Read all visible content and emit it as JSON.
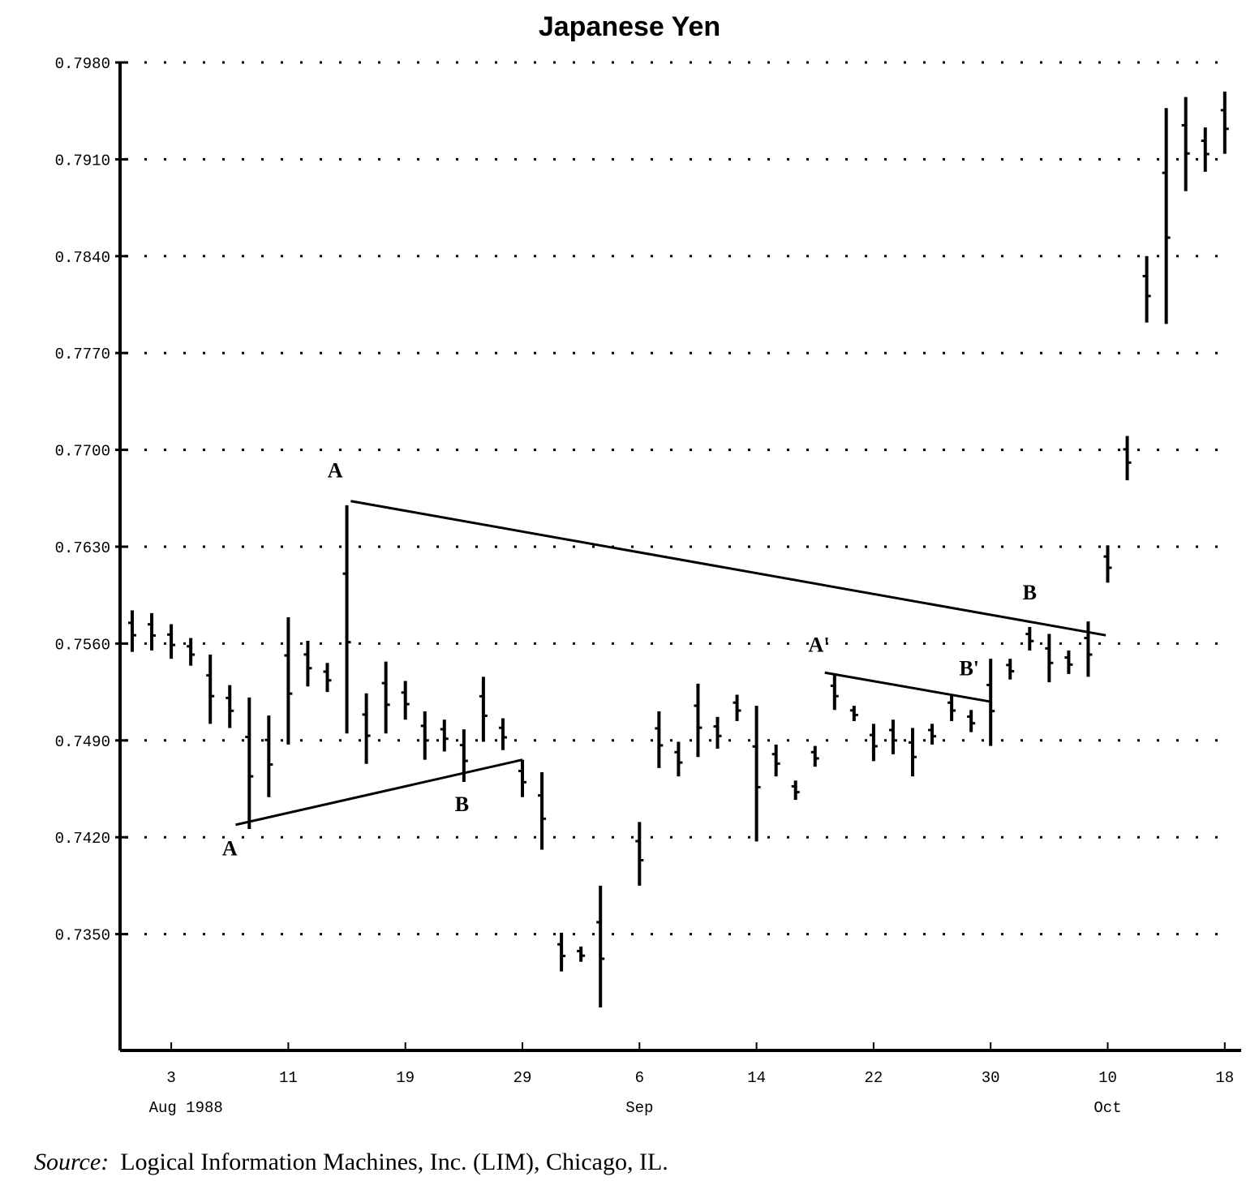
{
  "chart_data": {
    "type": "bar",
    "subtype": "high-low price bars",
    "title": "Japanese Yen",
    "xlabel": "",
    "ylabel": "",
    "ylim": [
      0.7266,
      0.798
    ],
    "yticks": [
      "0.7980",
      "0.7910",
      "0.7840",
      "0.7770",
      "0.7700",
      "0.7630",
      "0.7560",
      "0.7490",
      "0.7420",
      "0.7350"
    ],
    "ytick_values": [
      0.798,
      0.791,
      0.784,
      0.777,
      0.77,
      0.763,
      0.756,
      0.749,
      0.742,
      0.735
    ],
    "grid": "horizontal dotted",
    "xticks": [
      {
        "slot": 2,
        "label": "3"
      },
      {
        "slot": 8,
        "label": "11"
      },
      {
        "slot": 14,
        "label": "19"
      },
      {
        "slot": 20,
        "label": "29"
      },
      {
        "slot": 26,
        "label": "6"
      },
      {
        "slot": 32,
        "label": "14"
      },
      {
        "slot": 38,
        "label": "22"
      },
      {
        "slot": 44,
        "label": "30"
      },
      {
        "slot": 50,
        "label": "10"
      },
      {
        "slot": 56,
        "label": "18"
      }
    ],
    "month_labels": [
      {
        "slot": 4,
        "label": "Aug 1988"
      },
      {
        "slot": 26,
        "label": "Sep"
      },
      {
        "slot": 50,
        "label": "Oct"
      }
    ],
    "bars": [
      [
        0.7584,
        0.7554
      ],
      [
        0.7582,
        0.7555
      ],
      [
        0.7574,
        0.7549
      ],
      [
        0.7564,
        0.7544
      ],
      [
        0.7552,
        0.7502
      ],
      [
        0.753,
        0.7499
      ],
      [
        0.7521,
        0.7426
      ],
      [
        0.7508,
        0.7449
      ],
      [
        0.7579,
        0.7487
      ],
      [
        0.7562,
        0.7529
      ],
      [
        0.7546,
        0.7525
      ],
      [
        0.766,
        0.7495
      ],
      [
        0.7524,
        0.7473
      ],
      [
        0.7547,
        0.7495
      ],
      [
        0.7533,
        0.7505
      ],
      [
        0.7511,
        0.7476
      ],
      [
        0.7505,
        0.7482
      ],
      [
        0.7498,
        0.746
      ],
      [
        0.7536,
        0.7489
      ],
      [
        0.7506,
        0.7483
      ],
      [
        0.7476,
        0.7449
      ],
      [
        0.7467,
        0.7411
      ],
      [
        0.7351,
        0.7323
      ],
      [
        0.7341,
        0.733
      ],
      [
        0.7385,
        0.7297
      ],
      null,
      [
        0.7431,
        0.7385
      ],
      [
        0.7511,
        0.747
      ],
      [
        0.7489,
        0.7464
      ],
      [
        0.7531,
        0.7478
      ],
      [
        0.7507,
        0.7484
      ],
      [
        0.7523,
        0.7504
      ],
      [
        0.7515,
        0.7417
      ],
      [
        0.7487,
        0.7464
      ],
      [
        0.7461,
        0.7447
      ],
      [
        0.7486,
        0.7471
      ],
      [
        0.7537,
        0.7512
      ],
      [
        0.7515,
        0.7504
      ],
      [
        0.7502,
        0.7475
      ],
      [
        0.7505,
        0.748
      ],
      [
        0.7499,
        0.7464
      ],
      [
        0.7502,
        0.7487
      ],
      [
        0.7523,
        0.7504
      ],
      [
        0.7512,
        0.7496
      ],
      [
        0.7549,
        0.7486
      ],
      [
        0.7549,
        0.7534
      ],
      [
        0.7572,
        0.7555
      ],
      [
        0.7567,
        0.7532
      ],
      [
        0.7555,
        0.7538
      ],
      [
        0.7576,
        0.7536
      ],
      [
        0.7631,
        0.7604
      ],
      [
        0.771,
        0.7678
      ],
      [
        0.784,
        0.7792
      ],
      [
        0.7947,
        0.7791
      ],
      [
        0.7955,
        0.7887
      ],
      [
        0.7933,
        0.7901
      ],
      [
        0.7959,
        0.7914
      ]
    ],
    "trendlines": [
      {
        "name": "A-B upper",
        "from": {
          "slot": 11.2,
          "value": 0.7663
        },
        "to": {
          "slot": 49.9,
          "value": 0.7566
        }
      },
      {
        "name": "A-B lower",
        "from": {
          "slot": 5.3,
          "value": 0.7429
        },
        "to": {
          "slot": 20,
          "value": 0.7476
        }
      },
      {
        "name": "A'-B'",
        "from": {
          "slot": 35.5,
          "value": 0.7539
        },
        "to": {
          "slot": 44,
          "value": 0.7518
        }
      }
    ],
    "annotations": [
      {
        "label": "A",
        "slot": 10.4,
        "value": 0.768
      },
      {
        "label": "A",
        "slot": 5.0,
        "value": 0.7407
      },
      {
        "label": "B",
        "slot": 16.9,
        "value": 0.7439
      },
      {
        "label": "B",
        "slot": 46.0,
        "value": 0.7592
      },
      {
        "label": "A'",
        "slot": 35.2,
        "value": 0.7554
      },
      {
        "label": "B'",
        "slot": 42.9,
        "value": 0.7537
      }
    ]
  },
  "source_label": "Source:",
  "source_text": "Logical Information Machines, Inc. (LIM), Chicago, IL."
}
